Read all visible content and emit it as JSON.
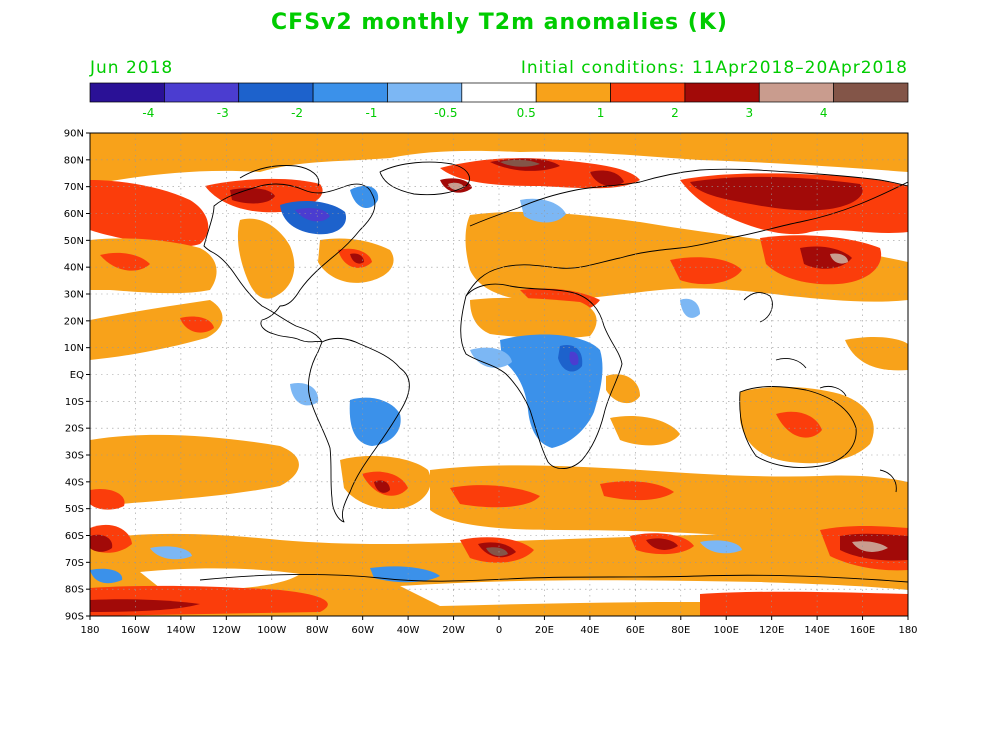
{
  "colors": {
    "text": "#00cc00",
    "coast": "#000000",
    "grid": "#999999"
  },
  "header": {
    "title": "CFSv2 monthly T2m anomalies (K)",
    "month": "Jun 2018",
    "initial_conditions": "Initial conditions: 11Apr2018–20Apr2018"
  },
  "colorbar": {
    "colors": [
      "#2a1196",
      "#4b3dd0",
      "#1d62cc",
      "#3b91ea",
      "#7cb7f4",
      "#ffffff",
      "#f8a21a",
      "#fb3d0b",
      "#a20a08",
      "#c99c8e",
      "#835548"
    ],
    "labels": [
      "-4",
      "-3",
      "-2",
      "-1",
      "-0.5",
      "0.5",
      "1",
      "2",
      "3",
      "4"
    ]
  },
  "axes": {
    "y_labels": [
      "90N",
      "80N",
      "70N",
      "60N",
      "50N",
      "40N",
      "30N",
      "20N",
      "10N",
      "EQ",
      "10S",
      "20S",
      "30S",
      "40S",
      "50S",
      "60S",
      "70S",
      "80S",
      "90S"
    ],
    "x_labels": [
      "180",
      "160W",
      "140W",
      "120W",
      "100W",
      "80W",
      "60W",
      "40W",
      "20W",
      "0",
      "20E",
      "40E",
      "60E",
      "80E",
      "100E",
      "120E",
      "140E",
      "160E",
      "180"
    ]
  }
}
